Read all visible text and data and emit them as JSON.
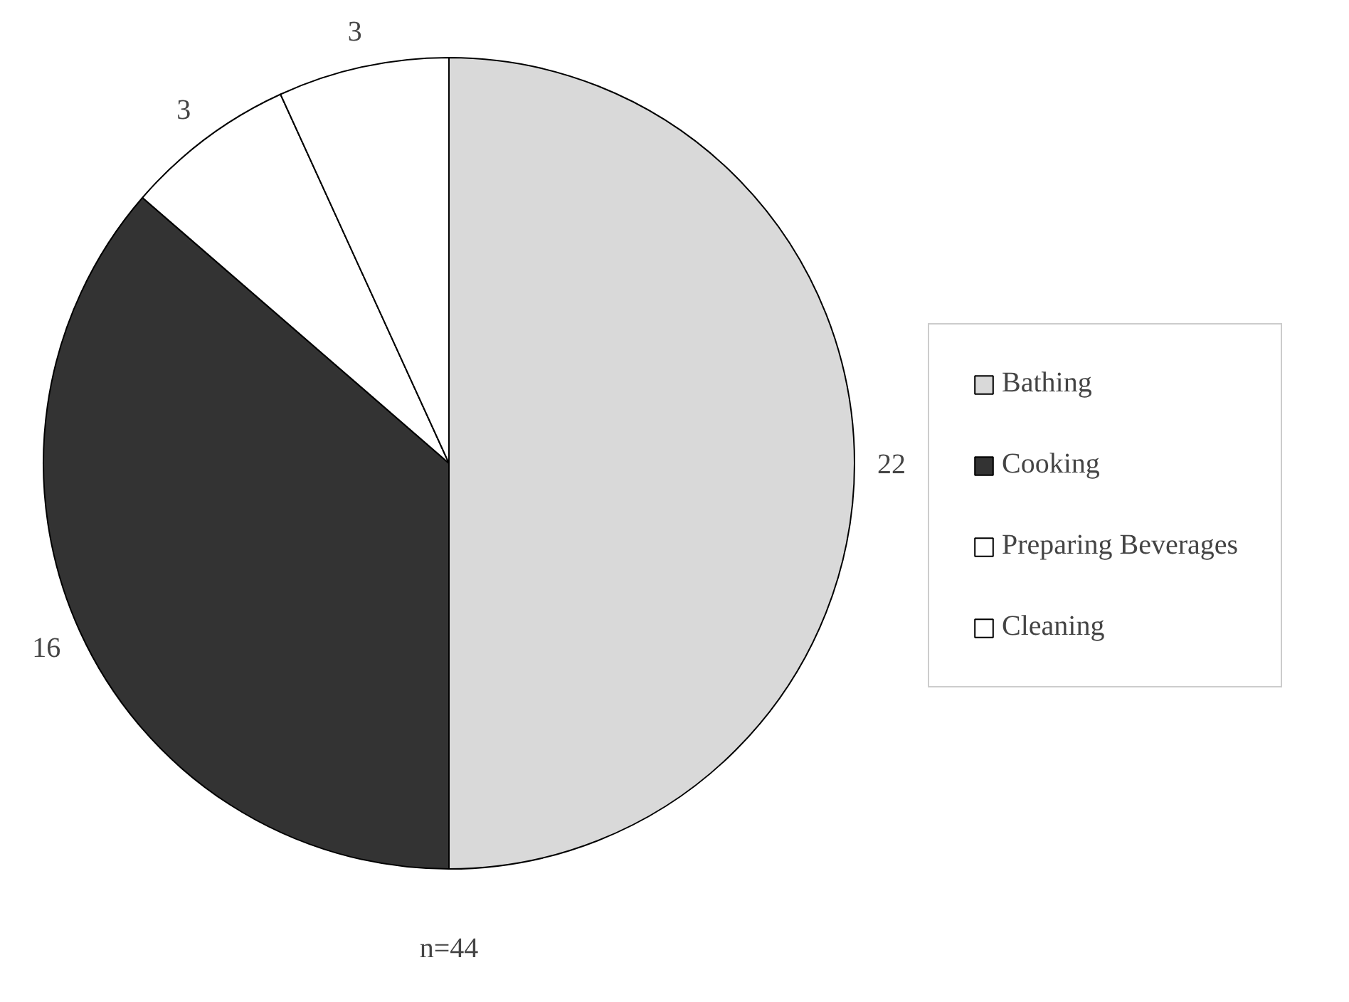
{
  "chart_data": {
    "type": "pie",
    "categories": [
      "Bathing",
      "Cooking",
      "Preparing Beverages",
      "Cleaning"
    ],
    "values": [
      22,
      16,
      3,
      3
    ],
    "colors": [
      "#d9d9d9",
      "#333333",
      "#ffffff",
      "#ffffff"
    ],
    "data_labels": true,
    "legend": "right",
    "annotations": [
      "n=44"
    ]
  }
}
